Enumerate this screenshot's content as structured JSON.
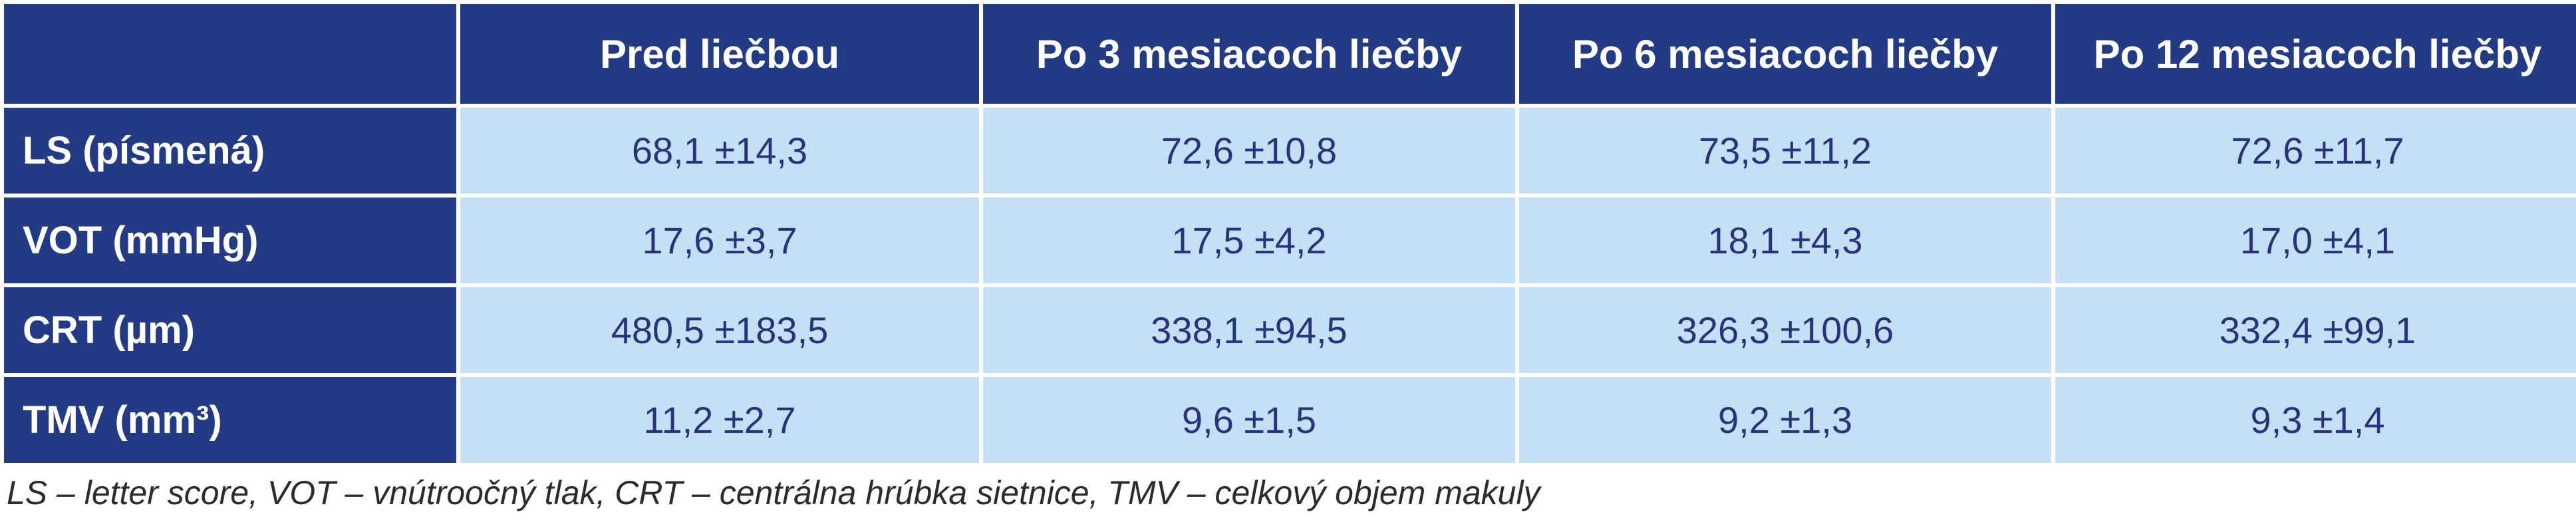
{
  "table": {
    "columns": [
      "",
      "Pred liečbou",
      "Po 3 mesiacoch liečby",
      "Po 6 mesiacoch liečby",
      "Po 12 mesiacoch liečby"
    ],
    "rows": [
      {
        "label": "LS (písmená)",
        "values": [
          "68,1 ±14,3",
          "72,6 ±10,8",
          "73,5 ±11,2",
          "72,6 ±11,7"
        ]
      },
      {
        "label": "VOT (mmHg)",
        "values": [
          "17,6 ±3,7",
          "17,5 ±4,2",
          "18,1 ±4,3",
          "17,0 ±4,1"
        ]
      },
      {
        "label": "CRT (µm)",
        "values": [
          "480,5 ±183,5",
          "338,1 ±94,5",
          "326,3 ±100,6",
          "332,4 ±99,1"
        ]
      },
      {
        "label": "TMV (mm³)",
        "values": [
          "11,2 ±2,7",
          "9,6 ±1,5",
          "9,2 ±1,3",
          "9,3 ±1,4"
        ]
      }
    ]
  },
  "footnote": "LS – letter score, VOT – vnútroočný tlak, CRT – centrálna hrúbka sietnice, TMV – celkový objem makuly",
  "colors": {
    "header_bg": "#233a84",
    "cell_bg": "#c5dff4",
    "cell_text": "#27337a"
  }
}
